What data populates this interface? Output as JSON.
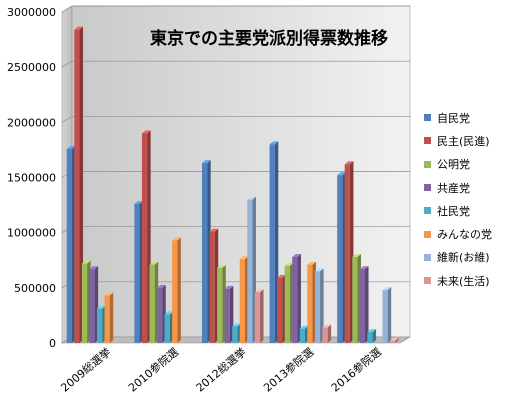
{
  "chart_data": {
    "type": "bar",
    "title": "東京での主要党派別得票数推移",
    "xlabel": "",
    "ylabel": "",
    "ylim": [
      0,
      3000000
    ],
    "yticks": [
      "0",
      "500000",
      "1000000",
      "1500000",
      "2000000",
      "2500000",
      "3000000"
    ],
    "grid": true,
    "legend_position": "right",
    "categories": [
      "2009総選挙",
      "2010参院選",
      "2012総選挙",
      "2013参院選",
      "2016参院選"
    ],
    "series": [
      {
        "name": "自民党",
        "color": "#4F81BD",
        "values": [
          1760000,
          1260000,
          1630000,
          1800000,
          1520000
        ]
      },
      {
        "name": "民主(民進)",
        "color": "#C0504D",
        "values": [
          2840000,
          1900000,
          1010000,
          590000,
          1620000
        ]
      },
      {
        "name": "公明党",
        "color": "#9BBB59",
        "values": [
          720000,
          710000,
          680000,
          700000,
          780000
        ]
      },
      {
        "name": "共産党",
        "color": "#8064A2",
        "values": [
          670000,
          500000,
          490000,
          780000,
          670000
        ]
      },
      {
        "name": "社民党",
        "color": "#4BACC6",
        "values": [
          310000,
          260000,
          150000,
          130000,
          100000
        ]
      },
      {
        "name": "みんなの党",
        "color": "#F79646",
        "values": [
          430000,
          930000,
          760000,
          710000,
          null
        ]
      },
      {
        "name": "維新(お維)",
        "color": "#95B3D7",
        "values": [
          null,
          null,
          1300000,
          650000,
          480000
        ]
      },
      {
        "name": "未来(生活)",
        "color": "#DA9694",
        "values": [
          null,
          null,
          460000,
          140000,
          20000
        ]
      }
    ]
  }
}
